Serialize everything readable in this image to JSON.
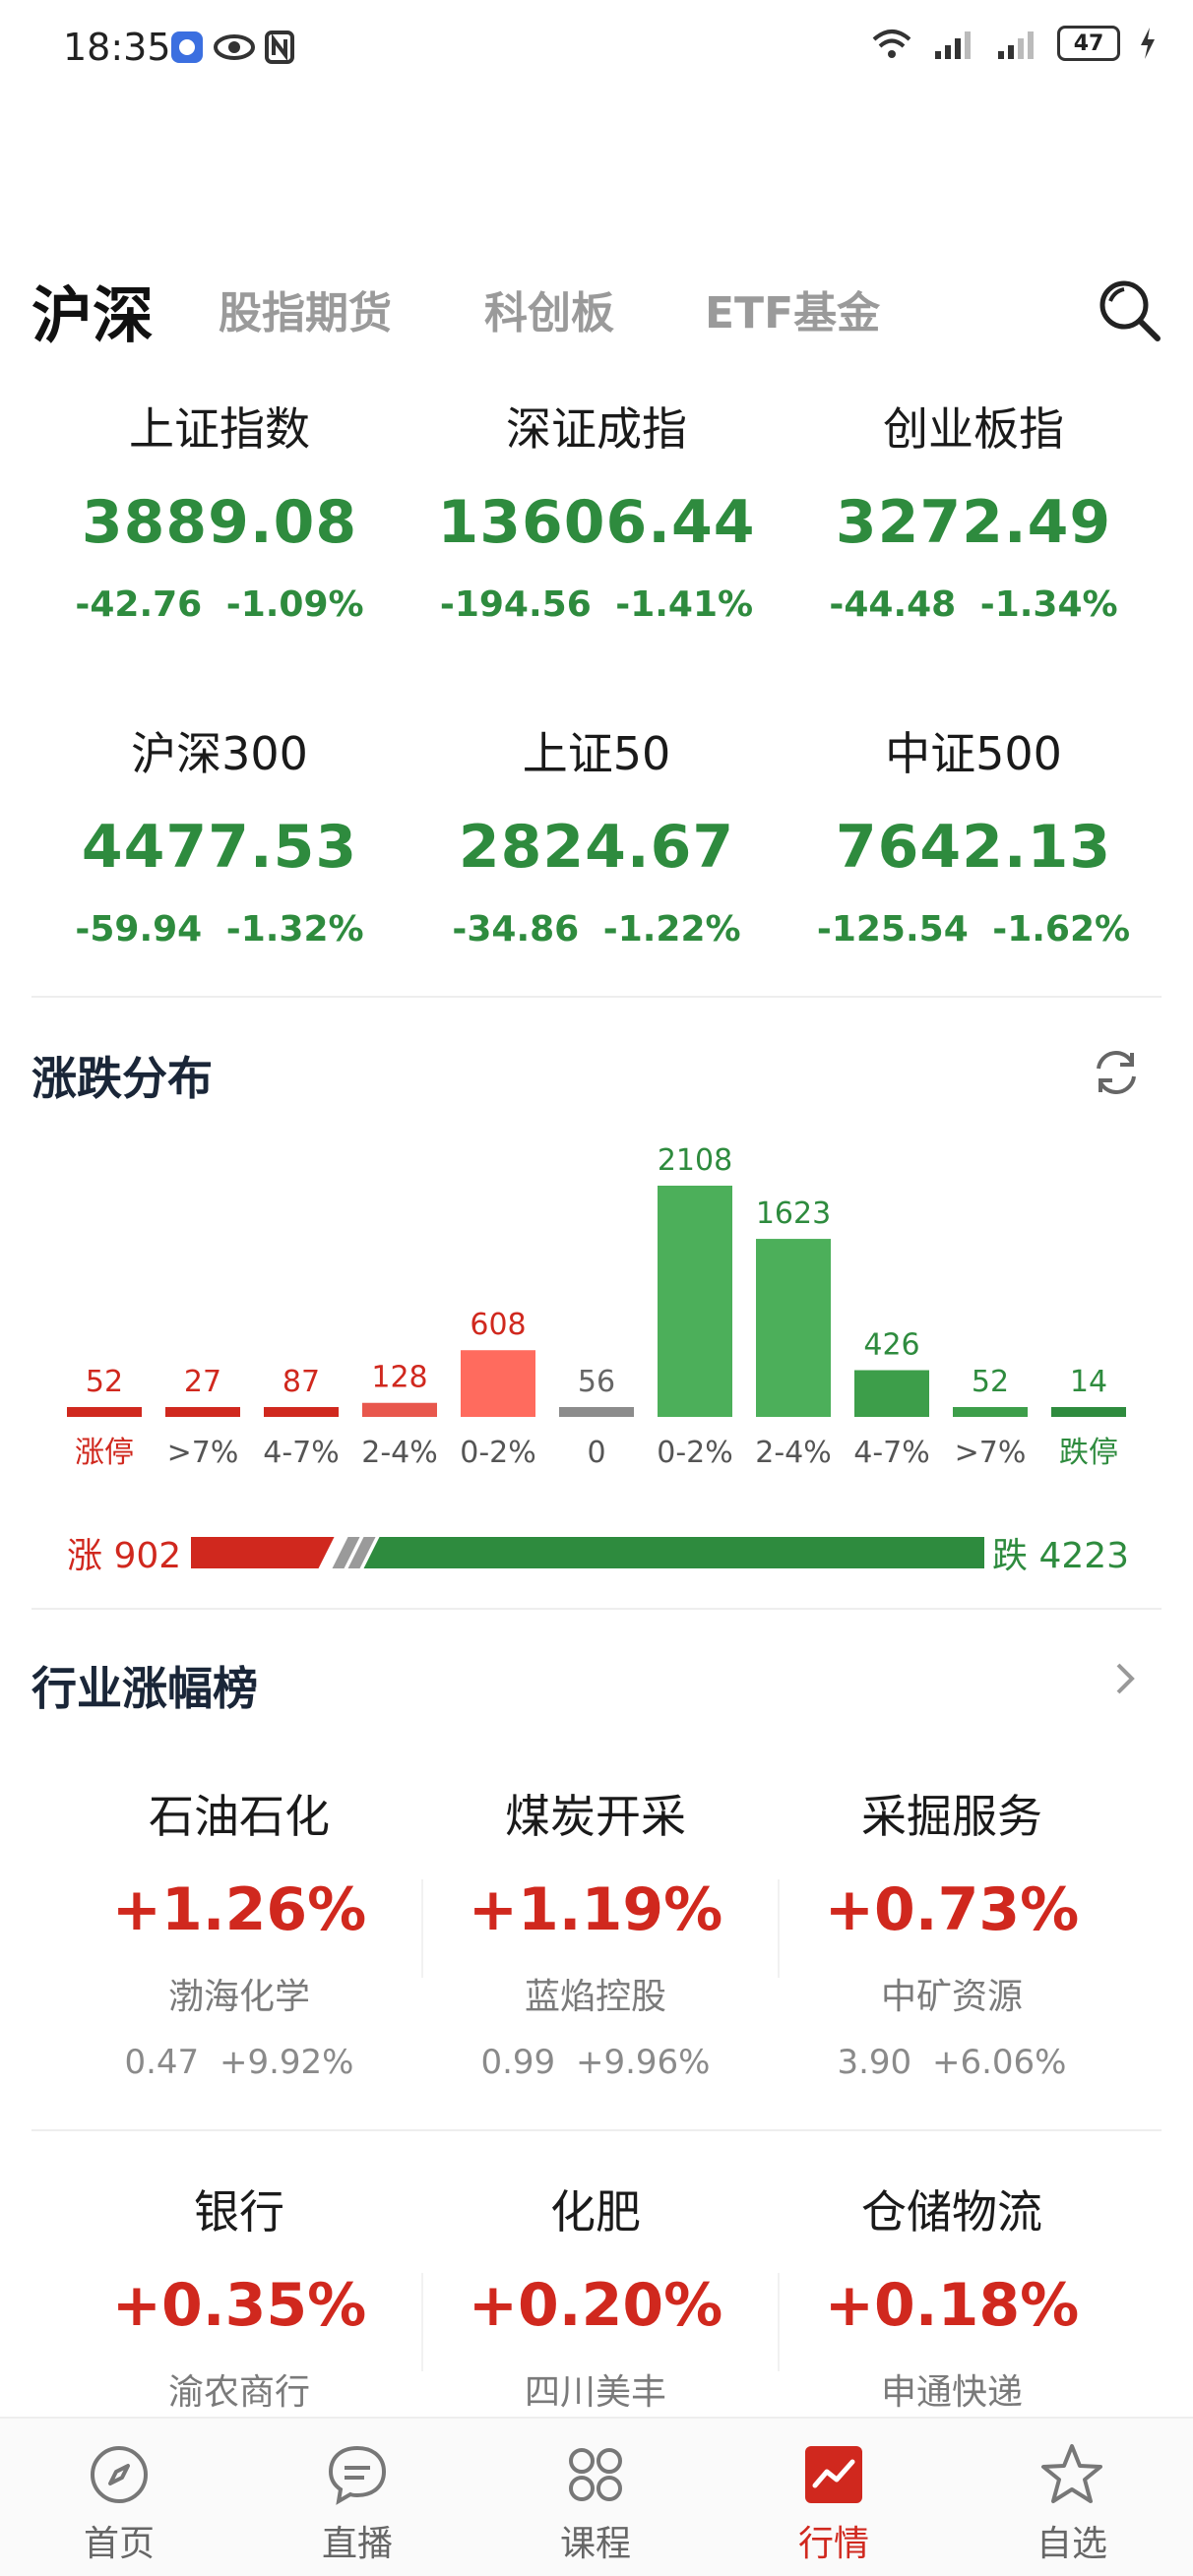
{
  "status_bar": {
    "time": "18:35",
    "battery": "47"
  },
  "tabs": [
    {
      "label": "沪深",
      "active": true
    },
    {
      "label": "股指期货",
      "active": false
    },
    {
      "label": "科创板",
      "active": false
    },
    {
      "label": "ETF基金",
      "active": false
    }
  ],
  "indices": [
    {
      "name": "上证指数",
      "value": "3889.08",
      "change": "-42.76  -1.09%"
    },
    {
      "name": "深证成指",
      "value": "13606.44",
      "change": "-194.56  -1.41%"
    },
    {
      "name": "创业板指",
      "value": "3272.49",
      "change": "-44.48  -1.34%"
    },
    {
      "name": "沪深300",
      "value": "4477.53",
      "change": "-59.94  -1.32%"
    },
    {
      "name": "上证50",
      "value": "2824.67",
      "change": "-34.86  -1.22%"
    },
    {
      "name": "中证500",
      "value": "7642.13",
      "change": "-125.54  -1.62%"
    }
  ],
  "distribution": {
    "title": "涨跌分布",
    "rise_label": "涨 902",
    "fall_label": "跌 4223",
    "colors": {
      "limit_up": "#d0281e",
      "up": "#e8574d",
      "up_light": "#ff6b5e",
      "flat": "#8c8c8c",
      "down_light": "#4caf5a",
      "down": "#3d9e4a",
      "limit_down": "#2e8b3e"
    }
  },
  "chart_data": {
    "type": "bar",
    "categories": [
      "涨停",
      ">7%",
      "4-7%",
      "2-4%",
      "0-2%",
      "0",
      "0-2%",
      "2-4%",
      "4-7%",
      ">7%",
      "跌停"
    ],
    "values": [
      52,
      27,
      87,
      128,
      608,
      56,
      2108,
      1623,
      426,
      52,
      14
    ],
    "colors": [
      "#d0281e",
      "#d0281e",
      "#d0281e",
      "#e8574d",
      "#ff6b5e",
      "#8c8c8c",
      "#4caf5a",
      "#4caf5a",
      "#3d9e4a",
      "#3d9e4a",
      "#2e8b3e"
    ],
    "label_colors": [
      "#d0281e",
      "#d0281e",
      "#d0281e",
      "#d0281e",
      "#d0281e",
      "#666666",
      "#2e8b3e",
      "#2e8b3e",
      "#2e8b3e",
      "#2e8b3e",
      "#2e8b3e"
    ],
    "cat_colors": [
      "#d0281e",
      "#555555",
      "#555555",
      "#555555",
      "#555555",
      "#555555",
      "#555555",
      "#555555",
      "#555555",
      "#555555",
      "#2e8b3e"
    ],
    "rise_total": 902,
    "fall_total": 4223
  },
  "industry": {
    "title": "行业涨幅榜",
    "items": [
      {
        "name": "石油石化",
        "pct": "+1.26%",
        "stock": "渤海化学",
        "detail": "0.47  +9.92%"
      },
      {
        "name": "煤炭开采",
        "pct": "+1.19%",
        "stock": "蓝焰控股",
        "detail": "0.99  +9.96%"
      },
      {
        "name": "采掘服务",
        "pct": "+0.73%",
        "stock": "中矿资源",
        "detail": "3.90  +6.06%"
      },
      {
        "name": "银行",
        "pct": "+0.35%",
        "stock": "渝农商行",
        "detail": ""
      },
      {
        "name": "化肥",
        "pct": "+0.20%",
        "stock": "四川美丰",
        "detail": ""
      },
      {
        "name": "仓储物流",
        "pct": "+0.18%",
        "stock": "申通快递",
        "detail": ""
      }
    ]
  },
  "bottom_nav": [
    {
      "label": "首页",
      "icon": "compass-icon"
    },
    {
      "label": "直播",
      "icon": "chat-bubble-icon"
    },
    {
      "label": "课程",
      "icon": "grid-flower-icon"
    },
    {
      "label": "行情",
      "icon": "market-chart-icon",
      "active": true
    },
    {
      "label": "自选",
      "icon": "star-icon"
    }
  ]
}
